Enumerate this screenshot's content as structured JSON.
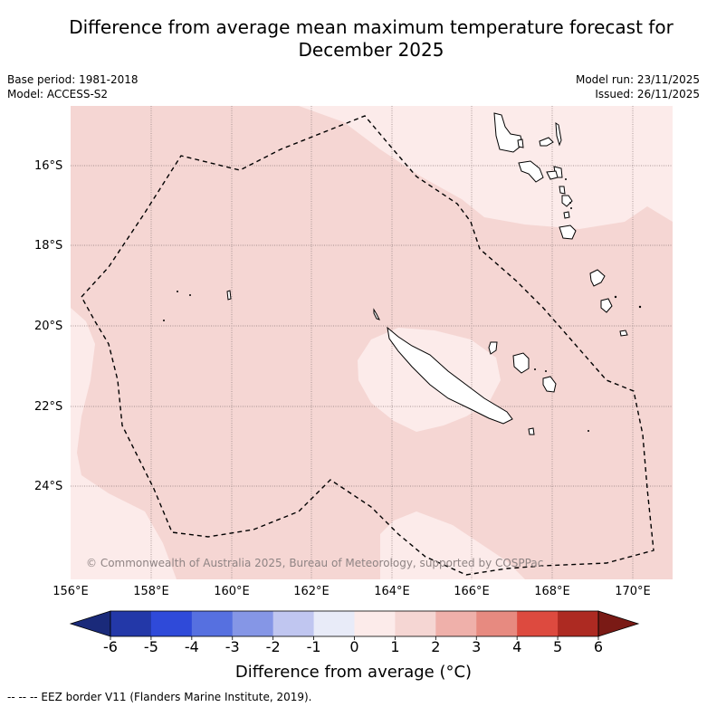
{
  "title_line1": "Difference from average mean maximum temperature forecast for",
  "title_line2": "December 2025",
  "base_period": "Base period: 1981-2018",
  "model": "Model: ACCESS-S2",
  "model_run": "Model run: 23/11/2025",
  "issued": "Issued: 26/11/2025",
  "lat_labels": [
    "16°S",
    "18°S",
    "20°S",
    "22°S",
    "24°S"
  ],
  "lon_labels": [
    "156°E",
    "158°E",
    "160°E",
    "162°E",
    "164°E",
    "166°E",
    "168°E",
    "170°E"
  ],
  "copyright": "© Commonwealth of Australia 2025, Bureau of Meteorology, supported by COSPPac",
  "colorbar": {
    "ticks": [
      "-6",
      "-5",
      "-4",
      "-3",
      "-2",
      "-1",
      "0",
      "1",
      "2",
      "3",
      "4",
      "5",
      "6"
    ],
    "colors": [
      "#2338a8",
      "#2f4ad9",
      "#5670e0",
      "#8596e6",
      "#c0c6f0",
      "#e8ebf8",
      "#fcebea",
      "#f5d6d3",
      "#efb0aa",
      "#e78a80",
      "#dd4a3f",
      "#ad2a22"
    ],
    "low_color": "#1a2a7a",
    "high_color": "#7a1a15",
    "label": "Difference from average (°C)"
  },
  "footnote": "-- -- -- EEZ border V11 (Flanders Marine Institute, 2019).",
  "map_colors": {
    "anomaly_0_1": "#fcebea",
    "anomaly_1_2": "#f5d6d3"
  }
}
